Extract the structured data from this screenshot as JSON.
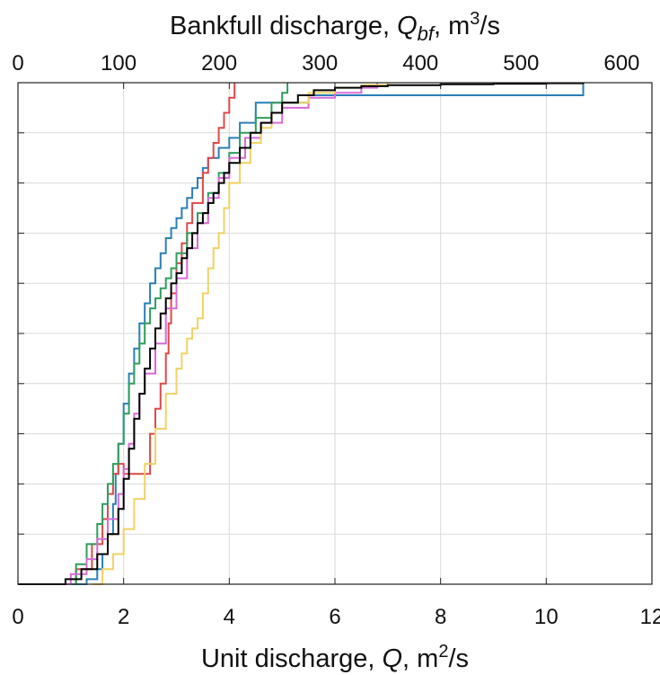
{
  "chart_data": {
    "type": "line",
    "xlabel": {
      "main": "Unit discharge, ",
      "var": "Q",
      "unit_base": ", m",
      "unit_sup": "2",
      "unit_tail": "/s"
    },
    "x2label": {
      "main": "Bankfull discharge, ",
      "var": "Q",
      "var_sub": "bf",
      "unit_base": ", m",
      "unit_sup": "3",
      "unit_tail": "/s"
    },
    "xlim": [
      0,
      12
    ],
    "ylim": [
      0,
      1
    ],
    "x_ticks": [
      "0",
      "2",
      "4",
      "6",
      "8",
      "10",
      "12"
    ],
    "x_tick_values": [
      0,
      2,
      4,
      6,
      8,
      10,
      12
    ],
    "x2_ticks": [
      "0",
      "100",
      "200",
      "300",
      "400",
      "500",
      "600"
    ],
    "x2_tick_values": [
      0,
      100,
      200,
      300,
      400,
      500,
      600
    ],
    "x2lim": [
      0,
      630
    ],
    "y_tick_values": [
      0,
      0.1,
      0.2,
      0.3,
      0.4,
      0.5,
      0.6,
      0.7,
      0.8,
      0.9,
      1.0
    ],
    "grid": true,
    "series": [
      {
        "color": "#2a7fb8",
        "x": [
          1.0,
          1.3,
          1.5,
          1.6,
          1.7,
          1.8,
          1.85,
          1.9,
          2.0,
          2.1,
          2.2,
          2.3,
          2.4,
          2.5,
          2.6,
          2.7,
          2.8,
          2.9,
          3.0,
          3.1,
          3.2,
          3.3,
          3.4,
          3.5,
          3.6,
          3.8,
          4.0,
          4.2,
          4.5,
          5.5,
          10.7,
          10.7
        ],
        "y": [
          0.0,
          0.01,
          0.03,
          0.06,
          0.1,
          0.16,
          0.22,
          0.28,
          0.36,
          0.42,
          0.47,
          0.52,
          0.56,
          0.6,
          0.63,
          0.66,
          0.69,
          0.71,
          0.73,
          0.75,
          0.77,
          0.79,
          0.81,
          0.83,
          0.85,
          0.87,
          0.89,
          0.92,
          0.96,
          0.975,
          0.975,
          1.0
        ]
      },
      {
        "color": "#e04848",
        "x": [
          0.9,
          1.1,
          1.4,
          1.6,
          1.7,
          1.8,
          1.9,
          2.0,
          2.1,
          2.3,
          2.5,
          2.6,
          2.7,
          2.8,
          2.85,
          2.9,
          3.0,
          3.1,
          3.2,
          3.3,
          3.5,
          3.6,
          3.7,
          3.8,
          3.9,
          4.0,
          4.1
        ],
        "y": [
          0.0,
          0.03,
          0.08,
          0.13,
          0.18,
          0.22,
          0.24,
          0.22,
          0.22,
          0.22,
          0.3,
          0.35,
          0.4,
          0.46,
          0.52,
          0.58,
          0.64,
          0.68,
          0.72,
          0.76,
          0.82,
          0.85,
          0.88,
          0.91,
          0.94,
          0.97,
          1.0
        ]
      },
      {
        "color": "#2e9e5b",
        "x": [
          0.9,
          1.1,
          1.3,
          1.5,
          1.6,
          1.7,
          1.8,
          1.9,
          2.0,
          2.1,
          2.2,
          2.3,
          2.4,
          2.5,
          2.6,
          2.7,
          2.8,
          2.9,
          3.0,
          3.2,
          3.4,
          3.6,
          3.8,
          4.0,
          4.2,
          4.5,
          4.8,
          5.0,
          5.1
        ],
        "y": [
          0.0,
          0.04,
          0.08,
          0.12,
          0.16,
          0.2,
          0.24,
          0.28,
          0.34,
          0.4,
          0.44,
          0.48,
          0.52,
          0.55,
          0.57,
          0.59,
          0.61,
          0.63,
          0.66,
          0.7,
          0.74,
          0.78,
          0.82,
          0.86,
          0.9,
          0.93,
          0.96,
          0.98,
          1.0
        ]
      },
      {
        "color": "#d86ad8",
        "x": [
          0.7,
          1.0,
          1.3,
          1.5,
          1.7,
          1.9,
          2.0,
          2.1,
          2.2,
          2.3,
          2.4,
          2.6,
          2.8,
          3.0,
          3.2,
          3.4,
          3.6,
          3.8,
          4.0,
          4.3,
          4.6,
          5.0,
          5.5,
          6.0,
          6.5,
          6.8
        ],
        "y": [
          0.0,
          0.02,
          0.05,
          0.09,
          0.13,
          0.18,
          0.23,
          0.28,
          0.34,
          0.38,
          0.42,
          0.48,
          0.55,
          0.61,
          0.67,
          0.72,
          0.77,
          0.81,
          0.85,
          0.89,
          0.92,
          0.95,
          0.97,
          0.98,
          0.99,
          1.0
        ]
      },
      {
        "color": "#f0d264",
        "x": [
          1.4,
          1.6,
          1.8,
          2.0,
          2.2,
          2.4,
          2.6,
          2.8,
          3.0,
          3.1,
          3.2,
          3.3,
          3.4,
          3.5,
          3.6,
          3.7,
          3.8,
          3.9,
          4.0,
          4.2,
          4.4,
          4.6,
          4.8,
          5.0,
          5.5,
          6.0,
          6.5,
          7.0
        ],
        "y": [
          0.0,
          0.03,
          0.06,
          0.11,
          0.17,
          0.24,
          0.31,
          0.38,
          0.43,
          0.46,
          0.49,
          0.51,
          0.53,
          0.58,
          0.63,
          0.67,
          0.7,
          0.75,
          0.8,
          0.84,
          0.88,
          0.91,
          0.94,
          0.96,
          0.98,
          0.99,
          0.995,
          1.0
        ]
      },
      {
        "color": "#000000",
        "x": [
          0.0,
          0.5,
          0.9,
          1.2,
          1.5,
          1.7,
          1.9,
          2.0,
          2.1,
          2.2,
          2.3,
          2.4,
          2.5,
          2.6,
          2.7,
          2.8,
          2.9,
          3.0,
          3.1,
          3.2,
          3.3,
          3.4,
          3.5,
          3.6,
          3.7,
          3.8,
          3.9,
          4.0,
          4.2,
          4.4,
          4.6,
          4.8,
          5.0,
          5.3,
          5.6,
          6.0,
          6.5,
          7.0,
          8.0,
          9.0,
          10.0,
          10.7
        ],
        "y": [
          0.0,
          0.0,
          0.01,
          0.03,
          0.06,
          0.1,
          0.15,
          0.21,
          0.27,
          0.33,
          0.38,
          0.43,
          0.47,
          0.51,
          0.54,
          0.57,
          0.6,
          0.62,
          0.65,
          0.67,
          0.7,
          0.72,
          0.74,
          0.76,
          0.78,
          0.8,
          0.82,
          0.84,
          0.87,
          0.9,
          0.92,
          0.94,
          0.96,
          0.975,
          0.985,
          0.99,
          0.993,
          0.995,
          0.997,
          0.998,
          0.999,
          1.0
        ]
      }
    ]
  }
}
